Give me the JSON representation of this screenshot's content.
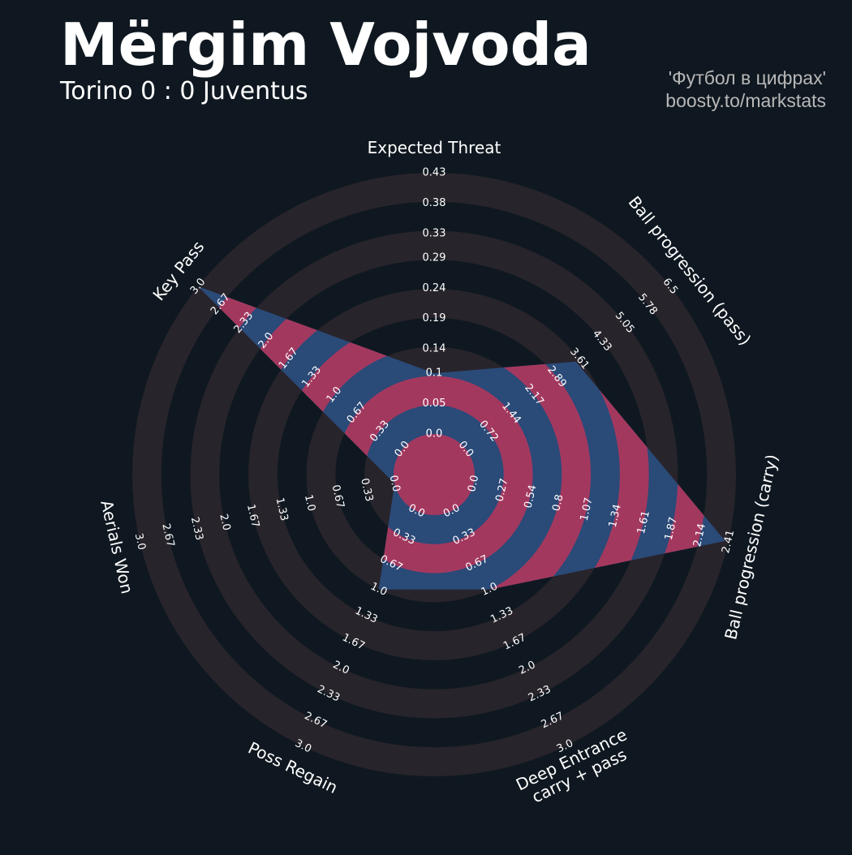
{
  "chart_data": {
    "type": "radar",
    "title": "Mërgim Vojvoda",
    "subtitle": "Torino 0 : 0 Juventus",
    "credits": [
      "'Футбол в цифрах'",
      "boosty.to/markstats"
    ],
    "params": [
      {
        "name": "Expected Threat",
        "lim": [
          0,
          0.43
        ],
        "ticks": [
          {
            "value": 0,
            "label": "0.0"
          },
          0.05,
          0.1,
          0.14,
          0.19,
          0.24,
          0.29,
          0.33,
          0.38,
          0.43
        ]
      },
      {
        "name": "Ball progression (pass)",
        "lim": [
          0,
          6.5
        ],
        "ticks": [
          {
            "value": 0,
            "label": "0.0"
          },
          0.72,
          1.44,
          2.17,
          2.89,
          3.61,
          4.33,
          5.05,
          5.78,
          6.5
        ]
      },
      {
        "name": "Ball progression (carry)",
        "lim": [
          0,
          2.41
        ],
        "ticks": [
          {
            "value": 0,
            "label": "0.0"
          },
          0.27,
          0.54,
          0.8,
          1.07,
          1.34,
          1.61,
          1.87,
          2.14,
          2.41
        ]
      },
      {
        "name": "Deep Entrance\ncarry + pass",
        "lim": [
          0,
          3
        ],
        "ticks": [
          {
            "value": 0,
            "label": "0.0"
          },
          0.33,
          0.67,
          {
            "value": 1,
            "label": "1.0"
          },
          1.33,
          1.67,
          {
            "value": 2,
            "label": "2.0"
          },
          2.33,
          2.67,
          {
            "value": 3,
            "label": "3.0"
          }
        ]
      },
      {
        "name": "Poss Regain",
        "lim": [
          0,
          3
        ],
        "ticks": [
          {
            "value": 0,
            "label": "0.0"
          },
          0.33,
          0.67,
          {
            "value": 1,
            "label": "1.0"
          },
          1.33,
          1.67,
          {
            "value": 2,
            "label": "2.0"
          },
          2.33,
          2.67,
          {
            "value": 3,
            "label": "3.0"
          }
        ]
      },
      {
        "name": "Aerials Won",
        "lim": [
          0,
          3
        ],
        "ticks": [
          {
            "value": 0,
            "label": "0.0"
          },
          0.33,
          0.67,
          {
            "value": 1,
            "label": "1.0"
          },
          1.33,
          1.67,
          {
            "value": 2,
            "label": "2.0"
          },
          2.33,
          2.67,
          {
            "value": 3,
            "label": "3.0"
          }
        ]
      },
      {
        "name": "Key Pass",
        "lim": [
          0,
          3
        ],
        "ticks": [
          {
            "value": 0,
            "label": "0.0"
          },
          0.33,
          0.67,
          {
            "value": 1,
            "label": "1.0"
          },
          1.33,
          1.67,
          {
            "value": 2,
            "label": "2.0"
          },
          2.33,
          2.67,
          {
            "value": 3,
            "label": "3.0"
          }
        ]
      }
    ],
    "values": [
      0.1,
      3.5,
      2.38,
      1,
      1,
      0,
      3
    ],
    "color": "#2a4a78",
    "ring_color": "#a3385f",
    "background_ring_color": "#28242b"
  }
}
